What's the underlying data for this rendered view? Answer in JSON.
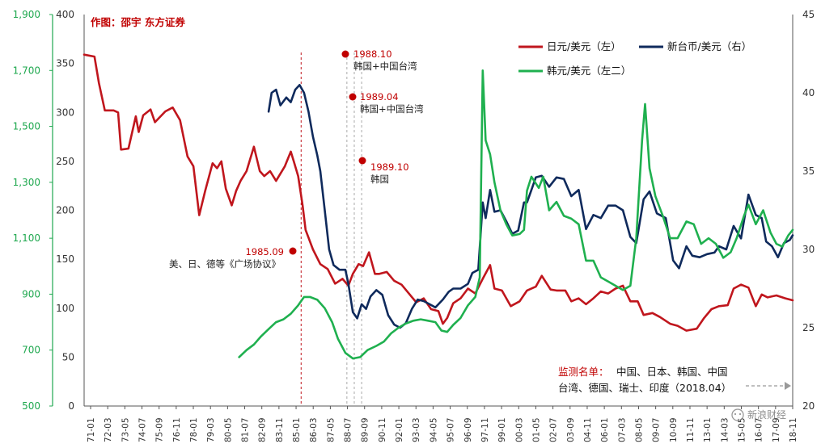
{
  "credit": "作图：邵宇 东方证券",
  "chart_data": {
    "type": "line",
    "x_ticks": [
      "71-01",
      "72-03",
      "73-05",
      "74-07",
      "75-09",
      "76-11",
      "78-01",
      "79-03",
      "80-05",
      "81-07",
      "82-09",
      "83-11",
      "85-01",
      "86-03",
      "87-05",
      "88-07",
      "89-09",
      "90-11",
      "92-01",
      "93-03",
      "94-05",
      "95-07",
      "96-09",
      "97-11",
      "99-01",
      "00-03",
      "01-05",
      "02-07",
      "03-09",
      "04-11",
      "06-01",
      "07-03",
      "08-05",
      "09-07",
      "10-09",
      "11-11",
      "13-01",
      "14-03",
      "15-05",
      "16-07",
      "17-09",
      "18-11"
    ],
    "y_left": {
      "ticks": [
        "400",
        "350",
        "300",
        "250",
        "200",
        "150",
        "100",
        "50",
        "0"
      ],
      "range": [
        0,
        400
      ]
    },
    "y_left2": {
      "ticks": [
        "1,900",
        "1,700",
        "1,500",
        "1,300",
        "1,100",
        "900",
        "700",
        "500"
      ],
      "range": [
        500,
        1900
      ]
    },
    "y_right": {
      "ticks": [
        "45",
        "40",
        "35",
        "30",
        "25",
        "20"
      ],
      "range": [
        20,
        45
      ]
    },
    "series": [
      {
        "name": "日元/美元（左）",
        "axis": "left",
        "color": "#c0161d",
        "points": [
          [
            1971.0,
            359
          ],
          [
            1971.7,
            357
          ],
          [
            1972.0,
            330
          ],
          [
            1972.4,
            302
          ],
          [
            1973.0,
            302
          ],
          [
            1973.3,
            300
          ],
          [
            1973.5,
            262
          ],
          [
            1974.0,
            263
          ],
          [
            1974.5,
            296
          ],
          [
            1974.7,
            280
          ],
          [
            1975.0,
            297
          ],
          [
            1975.5,
            303
          ],
          [
            1975.8,
            290
          ],
          [
            1976.5,
            301
          ],
          [
            1977.0,
            305
          ],
          [
            1977.5,
            292
          ],
          [
            1978.0,
            255
          ],
          [
            1978.4,
            245
          ],
          [
            1978.8,
            195
          ],
          [
            1979.2,
            220
          ],
          [
            1979.7,
            248
          ],
          [
            1980.0,
            243
          ],
          [
            1980.3,
            250
          ],
          [
            1980.6,
            222
          ],
          [
            1981.0,
            205
          ],
          [
            1981.3,
            220
          ],
          [
            1981.6,
            230
          ],
          [
            1982.0,
            240
          ],
          [
            1982.5,
            265
          ],
          [
            1982.9,
            240
          ],
          [
            1983.2,
            235
          ],
          [
            1983.6,
            240
          ],
          [
            1984.0,
            230
          ],
          [
            1984.6,
            245
          ],
          [
            1985.0,
            260
          ],
          [
            1985.2,
            250
          ],
          [
            1985.5,
            235
          ],
          [
            1985.8,
            205
          ],
          [
            1986.0,
            180
          ],
          [
            1986.5,
            160
          ],
          [
            1987.0,
            145
          ],
          [
            1987.5,
            140
          ],
          [
            1988.0,
            125
          ],
          [
            1988.5,
            130
          ],
          [
            1988.9,
            123
          ],
          [
            1989.2,
            135
          ],
          [
            1989.6,
            145
          ],
          [
            1989.9,
            143
          ],
          [
            1990.3,
            157
          ],
          [
            1990.7,
            135
          ],
          [
            1991.0,
            135
          ],
          [
            1991.5,
            137
          ],
          [
            1992.0,
            128
          ],
          [
            1992.5,
            124
          ],
          [
            1993.0,
            115
          ],
          [
            1993.5,
            106
          ],
          [
            1994.0,
            110
          ],
          [
            1994.5,
            99
          ],
          [
            1995.0,
            97
          ],
          [
            1995.3,
            84
          ],
          [
            1995.6,
            90
          ],
          [
            1996.0,
            105
          ],
          [
            1996.5,
            110
          ],
          [
            1997.0,
            120
          ],
          [
            1997.5,
            115
          ],
          [
            1998.0,
            130
          ],
          [
            1998.5,
            144
          ],
          [
            1998.8,
            120
          ],
          [
            1999.3,
            118
          ],
          [
            1999.9,
            102
          ],
          [
            2000.5,
            107
          ],
          [
            2001.0,
            118
          ],
          [
            2001.6,
            122
          ],
          [
            2002.0,
            133
          ],
          [
            2002.6,
            119
          ],
          [
            2003.0,
            118
          ],
          [
            2003.6,
            118
          ],
          [
            2004.0,
            107
          ],
          [
            2004.5,
            110
          ],
          [
            2005.0,
            104
          ],
          [
            2005.5,
            110
          ],
          [
            2006.0,
            117
          ],
          [
            2006.5,
            115
          ],
          [
            2007.0,
            120
          ],
          [
            2007.5,
            123
          ],
          [
            2008.0,
            107
          ],
          [
            2008.5,
            107
          ],
          [
            2008.9,
            93
          ],
          [
            2009.5,
            95
          ],
          [
            2010.0,
            91
          ],
          [
            2010.7,
            84
          ],
          [
            2011.2,
            82
          ],
          [
            2011.8,
            77
          ],
          [
            2012.5,
            79
          ],
          [
            2013.0,
            90
          ],
          [
            2013.5,
            99
          ],
          [
            2014.0,
            102
          ],
          [
            2014.6,
            103
          ],
          [
            2015.0,
            120
          ],
          [
            2015.5,
            124
          ],
          [
            2016.0,
            121
          ],
          [
            2016.5,
            102
          ],
          [
            2016.9,
            114
          ],
          [
            2017.3,
            111
          ],
          [
            2017.9,
            113
          ],
          [
            2018.5,
            110
          ],
          [
            2019.0,
            108
          ]
        ]
      },
      {
        "name": "新台币/美元（右）",
        "axis": "right",
        "color": "#0f2a5c",
        "points": [
          [
            1983.5,
            38.8
          ],
          [
            1983.7,
            40.0
          ],
          [
            1984.0,
            40.2
          ],
          [
            1984.3,
            39.2
          ],
          [
            1984.7,
            39.7
          ],
          [
            1985.0,
            39.4
          ],
          [
            1985.3,
            40.2
          ],
          [
            1985.6,
            40.5
          ],
          [
            1985.9,
            40.0
          ],
          [
            1986.2,
            38.8
          ],
          [
            1986.5,
            37.2
          ],
          [
            1986.8,
            36.0
          ],
          [
            1987.0,
            35.0
          ],
          [
            1987.3,
            32.5
          ],
          [
            1987.6,
            30.0
          ],
          [
            1987.9,
            29.0
          ],
          [
            1988.3,
            28.7
          ],
          [
            1988.7,
            28.7
          ],
          [
            1988.9,
            27.8
          ],
          [
            1989.2,
            26.0
          ],
          [
            1989.5,
            25.6
          ],
          [
            1989.8,
            26.5
          ],
          [
            1990.1,
            26.2
          ],
          [
            1990.4,
            27.0
          ],
          [
            1990.8,
            27.4
          ],
          [
            1991.2,
            27.1
          ],
          [
            1991.6,
            25.8
          ],
          [
            1992.0,
            25.2
          ],
          [
            1992.4,
            25.0
          ],
          [
            1992.8,
            25.3
          ],
          [
            1993.2,
            26.2
          ],
          [
            1993.6,
            26.8
          ],
          [
            1994.0,
            26.7
          ],
          [
            1994.4,
            26.5
          ],
          [
            1994.8,
            26.3
          ],
          [
            1995.3,
            26.8
          ],
          [
            1995.7,
            27.3
          ],
          [
            1996.0,
            27.5
          ],
          [
            1996.5,
            27.5
          ],
          [
            1997.0,
            27.8
          ],
          [
            1997.3,
            28.5
          ],
          [
            1997.7,
            28.7
          ],
          [
            1998.0,
            33.0
          ],
          [
            1998.2,
            32.0
          ],
          [
            1998.5,
            33.8
          ],
          [
            1998.8,
            32.4
          ],
          [
            1999.2,
            32.5
          ],
          [
            1999.6,
            31.8
          ],
          [
            2000.0,
            31.0
          ],
          [
            2000.4,
            31.2
          ],
          [
            2000.8,
            33.0
          ],
          [
            2001.0,
            33.0
          ],
          [
            2001.3,
            33.8
          ],
          [
            2001.6,
            34.6
          ],
          [
            2002.0,
            34.7
          ],
          [
            2002.5,
            34.0
          ],
          [
            2003.0,
            34.6
          ],
          [
            2003.5,
            34.5
          ],
          [
            2004.0,
            33.4
          ],
          [
            2004.5,
            33.8
          ],
          [
            2005.0,
            31.3
          ],
          [
            2005.5,
            32.2
          ],
          [
            2006.0,
            32.0
          ],
          [
            2006.5,
            32.8
          ],
          [
            2007.0,
            32.8
          ],
          [
            2007.5,
            32.5
          ],
          [
            2008.0,
            30.8
          ],
          [
            2008.4,
            30.4
          ],
          [
            2008.9,
            33.2
          ],
          [
            2009.3,
            33.7
          ],
          [
            2009.8,
            32.3
          ],
          [
            2010.4,
            32.0
          ],
          [
            2010.9,
            29.3
          ],
          [
            2011.3,
            28.8
          ],
          [
            2011.8,
            30.2
          ],
          [
            2012.2,
            29.6
          ],
          [
            2012.7,
            29.5
          ],
          [
            2013.2,
            29.7
          ],
          [
            2013.7,
            29.8
          ],
          [
            2014.0,
            30.2
          ],
          [
            2014.5,
            30.0
          ],
          [
            2015.0,
            31.5
          ],
          [
            2015.5,
            30.7
          ],
          [
            2016.0,
            33.5
          ],
          [
            2016.5,
            32.2
          ],
          [
            2016.9,
            32.0
          ],
          [
            2017.2,
            30.5
          ],
          [
            2017.6,
            30.2
          ],
          [
            2018.0,
            29.5
          ],
          [
            2018.4,
            30.4
          ],
          [
            2018.8,
            30.6
          ],
          [
            2019.0,
            30.9
          ]
        ]
      },
      {
        "name": "韩元/美元（左二）",
        "axis": "left2",
        "color": "#1fb04f",
        "points": [
          [
            1981.5,
            675
          ],
          [
            1982.0,
            700
          ],
          [
            1982.5,
            720
          ],
          [
            1983.0,
            750
          ],
          [
            1983.5,
            775
          ],
          [
            1984.0,
            800
          ],
          [
            1984.5,
            810
          ],
          [
            1985.0,
            830
          ],
          [
            1985.5,
            860
          ],
          [
            1985.9,
            890
          ],
          [
            1986.3,
            890
          ],
          [
            1986.8,
            880
          ],
          [
            1987.3,
            850
          ],
          [
            1987.8,
            800
          ],
          [
            1988.2,
            740
          ],
          [
            1988.7,
            690
          ],
          [
            1989.2,
            670
          ],
          [
            1989.7,
            675
          ],
          [
            1990.2,
            700
          ],
          [
            1990.8,
            715
          ],
          [
            1991.3,
            730
          ],
          [
            1991.8,
            760
          ],
          [
            1992.3,
            780
          ],
          [
            1992.8,
            795
          ],
          [
            1993.3,
            805
          ],
          [
            1993.8,
            810
          ],
          [
            1994.3,
            805
          ],
          [
            1994.8,
            800
          ],
          [
            1995.2,
            770
          ],
          [
            1995.6,
            765
          ],
          [
            1996.0,
            790
          ],
          [
            1996.5,
            815
          ],
          [
            1997.0,
            860
          ],
          [
            1997.5,
            890
          ],
          [
            1997.8,
            960
          ],
          [
            1998.0,
            1700
          ],
          [
            1998.2,
            1450
          ],
          [
            1998.5,
            1400
          ],
          [
            1998.8,
            1300
          ],
          [
            1999.2,
            1200
          ],
          [
            1999.6,
            1150
          ],
          [
            2000.0,
            1110
          ],
          [
            2000.5,
            1115
          ],
          [
            2000.8,
            1130
          ],
          [
            2001.0,
            1270
          ],
          [
            2001.3,
            1320
          ],
          [
            2001.8,
            1280
          ],
          [
            2002.1,
            1320
          ],
          [
            2002.5,
            1200
          ],
          [
            2003.0,
            1230
          ],
          [
            2003.5,
            1180
          ],
          [
            2004.0,
            1170
          ],
          [
            2004.5,
            1150
          ],
          [
            2005.0,
            1020
          ],
          [
            2005.5,
            1020
          ],
          [
            2006.0,
            960
          ],
          [
            2006.5,
            945
          ],
          [
            2007.0,
            930
          ],
          [
            2007.5,
            915
          ],
          [
            2008.0,
            930
          ],
          [
            2008.4,
            1100
          ],
          [
            2008.8,
            1450
          ],
          [
            2009.0,
            1580
          ],
          [
            2009.3,
            1350
          ],
          [
            2009.7,
            1250
          ],
          [
            2010.2,
            1180
          ],
          [
            2010.7,
            1100
          ],
          [
            2011.2,
            1100
          ],
          [
            2011.8,
            1160
          ],
          [
            2012.3,
            1150
          ],
          [
            2012.8,
            1080
          ],
          [
            2013.3,
            1100
          ],
          [
            2013.8,
            1080
          ],
          [
            2014.3,
            1030
          ],
          [
            2014.8,
            1050
          ],
          [
            2015.2,
            1100
          ],
          [
            2015.7,
            1180
          ],
          [
            2016.0,
            1220
          ],
          [
            2016.5,
            1150
          ],
          [
            2017.0,
            1200
          ],
          [
            2017.5,
            1120
          ],
          [
            2017.9,
            1080
          ],
          [
            2018.3,
            1070
          ],
          [
            2018.7,
            1110
          ],
          [
            2019.0,
            1130
          ]
        ]
      }
    ],
    "events": [
      {
        "year": 1985.7,
        "date": "1985.09",
        "text": "美、日、德等《广场协议》"
      },
      {
        "year": 1988.8,
        "date": "1988.10",
        "text": "韩国+中国台湾"
      },
      {
        "year": 1989.3,
        "date": "1989.04",
        "text": "韩国+中国台湾"
      },
      {
        "year": 1989.8,
        "date": "1989.10",
        "text": "韩国"
      }
    ]
  },
  "legend": {
    "jpy": "日元/美元（左）",
    "twd": "新台币/美元（右）",
    "krw": "韩元/美元（左二）"
  },
  "note": {
    "label": "监测名单：",
    "line1": "中国、日本、韩国、中国",
    "line2": "台湾、德国、瑞士、印度（2018.04）"
  },
  "watermark": "新浪财经",
  "colors": {
    "jpy": "#c0161d",
    "twd": "#0f2a5c",
    "krw": "#1fb04f",
    "annotation": "#c00000"
  }
}
